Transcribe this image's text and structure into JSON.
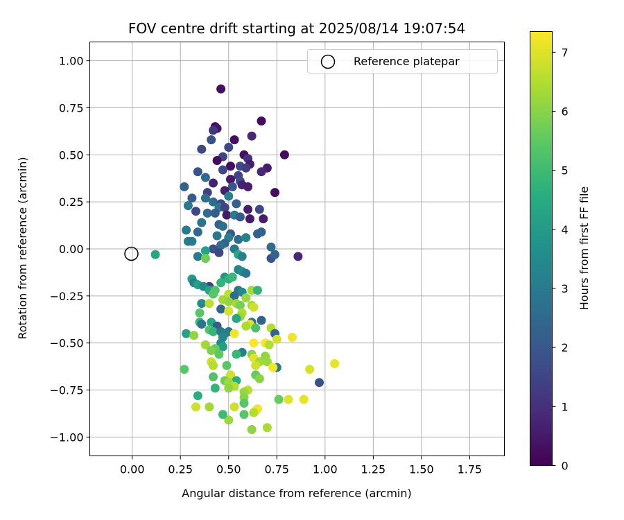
{
  "chart_data": {
    "type": "scatter",
    "title": "FOV centre drift starting at 2025/08/14 19:07:54",
    "xlabel": "Angular distance from reference (arcmin)",
    "ylabel": "Rotation from reference (arcmin)",
    "xlim": [
      -0.22,
      1.93
    ],
    "ylim": [
      -1.1,
      1.1
    ],
    "xticks": [
      "0.00",
      "0.25",
      "0.50",
      "0.75",
      "1.00",
      "1.25",
      "1.50",
      "1.75"
    ],
    "xtick_values": [
      0,
      0.25,
      0.5,
      0.75,
      1.0,
      1.25,
      1.5,
      1.75
    ],
    "yticks": [
      "1.00",
      "0.75",
      "0.50",
      "0.25",
      "0.00",
      "−0.25",
      "−0.50",
      "−0.75",
      "−1.00"
    ],
    "ytick_values": [
      1.0,
      0.75,
      0.5,
      0.25,
      0.0,
      -0.25,
      -0.5,
      -0.75,
      -1.0
    ],
    "grid": true,
    "legend": {
      "position": "top-right",
      "label": "Reference platepar"
    },
    "reference_point": {
      "x": 0.0,
      "y": 0.0
    },
    "colorbar": {
      "label": "Hours from first FF file",
      "colormap": "viridis",
      "range": [
        0,
        7.35
      ],
      "ticks": [
        "0",
        "1",
        "2",
        "3",
        "4",
        "5",
        "6",
        "7"
      ],
      "tick_values": [
        0,
        1,
        2,
        3,
        4,
        5,
        6,
        7
      ]
    },
    "points": [
      [
        0.46,
        0.85,
        0.3
      ],
      [
        0.43,
        0.65,
        0.3
      ],
      [
        0.44,
        0.64,
        0.4
      ],
      [
        0.67,
        0.68,
        0.2
      ],
      [
        0.62,
        0.6,
        0.8
      ],
      [
        0.42,
        0.63,
        1.2
      ],
      [
        0.53,
        0.58,
        0.3
      ],
      [
        0.41,
        0.58,
        1.8
      ],
      [
        0.36,
        0.53,
        1.6
      ],
      [
        0.5,
        0.54,
        1.6
      ],
      [
        0.58,
        0.5,
        0.3
      ],
      [
        0.47,
        0.49,
        1.5
      ],
      [
        0.79,
        0.5,
        0.2
      ],
      [
        0.6,
        0.48,
        1.0
      ],
      [
        0.44,
        0.47,
        0.2
      ],
      [
        0.61,
        0.45,
        0.6
      ],
      [
        0.7,
        0.43,
        0.6
      ],
      [
        0.51,
        0.44,
        0.3
      ],
      [
        0.56,
        0.44,
        1.7
      ],
      [
        0.59,
        0.43,
        1.3
      ],
      [
        0.47,
        0.42,
        1.6
      ],
      [
        0.34,
        0.41,
        1.9
      ],
      [
        0.67,
        0.41,
        0.8
      ],
      [
        0.55,
        0.39,
        1.5
      ],
      [
        0.38,
        0.38,
        2.5
      ],
      [
        0.51,
        0.37,
        0.5
      ],
      [
        0.56,
        0.36,
        1.7
      ],
      [
        0.42,
        0.35,
        0.7
      ],
      [
        0.57,
        0.34,
        0.7
      ],
      [
        0.6,
        0.33,
        0.6
      ],
      [
        0.27,
        0.33,
        2.3
      ],
      [
        0.52,
        0.33,
        2.0
      ],
      [
        0.39,
        0.3,
        1.4
      ],
      [
        0.48,
        0.31,
        0.6
      ],
      [
        0.74,
        0.3,
        0.3
      ],
      [
        0.31,
        0.27,
        2.1
      ],
      [
        0.5,
        0.28,
        3.2
      ],
      [
        0.38,
        0.27,
        2.6
      ],
      [
        0.42,
        0.25,
        2.6
      ],
      [
        0.46,
        0.24,
        1.6
      ],
      [
        0.54,
        0.24,
        2.2
      ],
      [
        0.29,
        0.23,
        2.9
      ],
      [
        0.45,
        0.22,
        3.0
      ],
      [
        0.48,
        0.22,
        1.5
      ],
      [
        0.6,
        0.21,
        0.6
      ],
      [
        0.66,
        0.21,
        1.6
      ],
      [
        0.33,
        0.2,
        1.6
      ],
      [
        0.39,
        0.19,
        2.6
      ],
      [
        0.43,
        0.19,
        2.1
      ],
      [
        0.49,
        0.18,
        0.5
      ],
      [
        0.53,
        0.18,
        3.0
      ],
      [
        0.56,
        0.17,
        2.1
      ],
      [
        0.61,
        0.16,
        0.5
      ],
      [
        0.68,
        0.16,
        0.6
      ],
      [
        0.36,
        0.14,
        2.8
      ],
      [
        0.45,
        0.13,
        2.3
      ],
      [
        0.47,
        0.12,
        2.7
      ],
      [
        0.28,
        0.1,
        3.0
      ],
      [
        0.34,
        0.09,
        2.5
      ],
      [
        0.51,
        0.08,
        2.0
      ],
      [
        0.65,
        0.08,
        2.2
      ],
      [
        0.67,
        0.09,
        2.3
      ],
      [
        0.44,
        0.07,
        2.9
      ],
      [
        0.5,
        0.06,
        3.2
      ],
      [
        0.55,
        0.05,
        2.6
      ],
      [
        0.59,
        0.06,
        3.2
      ],
      [
        0.29,
        0.04,
        3.1
      ],
      [
        0.31,
        0.04,
        3.0
      ],
      [
        0.48,
        0.03,
        2.3
      ],
      [
        0.46,
        0.02,
        2.6
      ],
      [
        0.72,
        0.01,
        2.6
      ],
      [
        0.42,
        0.0,
        1.9
      ],
      [
        0.53,
        0.0,
        2.9
      ],
      [
        0.38,
        -0.01,
        4.2
      ],
      [
        0.45,
        -0.02,
        1.6
      ],
      [
        0.55,
        -0.03,
        4.4
      ],
      [
        0.57,
        -0.04,
        3.2
      ],
      [
        0.72,
        -0.05,
        1.9
      ],
      [
        0.74,
        -0.03,
        2.3
      ],
      [
        0.86,
        -0.04,
        0.8
      ],
      [
        0.34,
        -0.04,
        3.0
      ],
      [
        0.12,
        -0.03,
        4.3
      ],
      [
        0.38,
        -0.05,
        5.7
      ],
      [
        0.55,
        -0.11,
        3.3
      ],
      [
        0.57,
        -0.12,
        3.6
      ],
      [
        0.59,
        -0.13,
        2.9
      ],
      [
        0.48,
        -0.15,
        3.8
      ],
      [
        0.5,
        -0.16,
        4.7
      ],
      [
        0.52,
        -0.15,
        4.9
      ],
      [
        0.31,
        -0.16,
        4.1
      ],
      [
        0.32,
        -0.18,
        3.2
      ],
      [
        0.46,
        -0.18,
        4.8
      ],
      [
        0.34,
        -0.19,
        4.2
      ],
      [
        0.4,
        -0.2,
        1.5
      ],
      [
        0.37,
        -0.2,
        3.5
      ],
      [
        0.4,
        -0.22,
        4.3
      ],
      [
        0.43,
        -0.22,
        5.3
      ],
      [
        0.55,
        -0.22,
        2.9
      ],
      [
        0.62,
        -0.22,
        6.3
      ],
      [
        0.65,
        -0.22,
        4.8
      ],
      [
        0.57,
        -0.23,
        3.5
      ],
      [
        0.5,
        -0.24,
        6.6
      ],
      [
        0.42,
        -0.24,
        5.4
      ],
      [
        0.53,
        -0.25,
        2.6
      ],
      [
        0.59,
        -0.26,
        6.2
      ],
      [
        0.47,
        -0.27,
        6.3
      ],
      [
        0.5,
        -0.28,
        6.1
      ],
      [
        0.36,
        -0.29,
        3.5
      ],
      [
        0.4,
        -0.29,
        6.6
      ],
      [
        0.54,
        -0.29,
        6.3
      ],
      [
        0.56,
        -0.3,
        5.8
      ],
      [
        0.62,
        -0.3,
        6.4
      ],
      [
        0.63,
        -0.31,
        6.8
      ],
      [
        0.46,
        -0.32,
        2.4
      ],
      [
        0.5,
        -0.33,
        6.9
      ],
      [
        0.57,
        -0.34,
        6.5
      ],
      [
        0.35,
        -0.34,
        5.4
      ],
      [
        0.56,
        -0.36,
        6.2
      ],
      [
        0.54,
        -0.37,
        4.4
      ],
      [
        0.67,
        -0.38,
        2.3
      ],
      [
        0.62,
        -0.39,
        2.7
      ],
      [
        0.35,
        -0.39,
        4.9
      ],
      [
        0.41,
        -0.39,
        4.4
      ],
      [
        0.61,
        -0.4,
        7.0
      ],
      [
        0.36,
        -0.4,
        2.8
      ],
      [
        0.44,
        -0.41,
        2.1
      ],
      [
        0.59,
        -0.41,
        6.4
      ],
      [
        0.64,
        -0.42,
        5.2
      ],
      [
        0.72,
        -0.42,
        6.5
      ],
      [
        0.4,
        -0.43,
        5.3
      ],
      [
        0.42,
        -0.44,
        4.8
      ],
      [
        0.46,
        -0.44,
        2.9
      ],
      [
        0.5,
        -0.44,
        2.9
      ],
      [
        0.48,
        -0.45,
        3.1
      ],
      [
        0.74,
        -0.45,
        2.4
      ],
      [
        0.28,
        -0.45,
        4.2
      ],
      [
        0.32,
        -0.46,
        6.1
      ],
      [
        0.53,
        -0.45,
        7.2
      ],
      [
        0.47,
        -0.47,
        3.4
      ],
      [
        0.75,
        -0.48,
        6.9
      ],
      [
        0.83,
        -0.47,
        7.2
      ],
      [
        0.69,
        -0.5,
        7.3
      ],
      [
        0.46,
        -0.5,
        3.5
      ],
      [
        0.63,
        -0.5,
        7.3
      ],
      [
        0.38,
        -0.51,
        6.3
      ],
      [
        0.71,
        -0.51,
        6.5
      ],
      [
        0.47,
        -0.52,
        4.1
      ],
      [
        0.43,
        -0.53,
        5.6
      ],
      [
        0.41,
        -0.54,
        5.9
      ],
      [
        0.57,
        -0.55,
        3.2
      ],
      [
        0.45,
        -0.56,
        5.5
      ],
      [
        0.54,
        -0.56,
        4.9
      ],
      [
        0.62,
        -0.56,
        6.0
      ],
      [
        0.69,
        -0.57,
        6.1
      ],
      [
        0.63,
        -0.58,
        7.0
      ],
      [
        0.41,
        -0.6,
        6.8
      ],
      [
        0.66,
        -0.6,
        6.3
      ],
      [
        0.7,
        -0.6,
        6.2
      ],
      [
        0.64,
        -0.62,
        6.8
      ],
      [
        0.42,
        -0.62,
        6.5
      ],
      [
        0.49,
        -0.62,
        5.4
      ],
      [
        0.75,
        -0.63,
        3.0
      ],
      [
        0.27,
        -0.64,
        5.4
      ],
      [
        0.73,
        -0.63,
        7.2
      ],
      [
        0.92,
        -0.64,
        6.9
      ],
      [
        1.05,
        -0.61,
        7.1
      ],
      [
        0.51,
        -0.67,
        6.8
      ],
      [
        0.64,
        -0.67,
        5.6
      ],
      [
        0.42,
        -0.68,
        5.3
      ],
      [
        0.66,
        -0.69,
        6.0
      ],
      [
        0.54,
        -0.7,
        4.6
      ],
      [
        0.97,
        -0.71,
        1.8
      ],
      [
        0.48,
        -0.7,
        5.7
      ],
      [
        0.5,
        -0.71,
        6.3
      ],
      [
        0.53,
        -0.73,
        6.5
      ],
      [
        0.5,
        -0.74,
        6.1
      ],
      [
        0.43,
        -0.74,
        4.8
      ],
      [
        0.6,
        -0.75,
        6.6
      ],
      [
        0.58,
        -0.76,
        6.2
      ],
      [
        0.34,
        -0.78,
        4.6
      ],
      [
        0.58,
        -0.79,
        6.0
      ],
      [
        0.76,
        -0.8,
        5.6
      ],
      [
        0.81,
        -0.8,
        7.0
      ],
      [
        0.89,
        -0.8,
        7.1
      ],
      [
        0.58,
        -0.82,
        5.4
      ],
      [
        0.53,
        -0.84,
        6.8
      ],
      [
        0.4,
        -0.84,
        6.3
      ],
      [
        0.33,
        -0.84,
        6.8
      ],
      [
        0.64,
        -0.86,
        7.0
      ],
      [
        0.65,
        -0.85,
        7.2
      ],
      [
        0.58,
        -0.88,
        5.4
      ],
      [
        0.5,
        -0.91,
        6.2
      ],
      [
        0.63,
        -0.87,
        6.5
      ],
      [
        0.62,
        -0.96,
        6.1
      ],
      [
        0.7,
        -0.95,
        6.4
      ],
      [
        0.47,
        -0.88,
        5.0
      ]
    ]
  }
}
